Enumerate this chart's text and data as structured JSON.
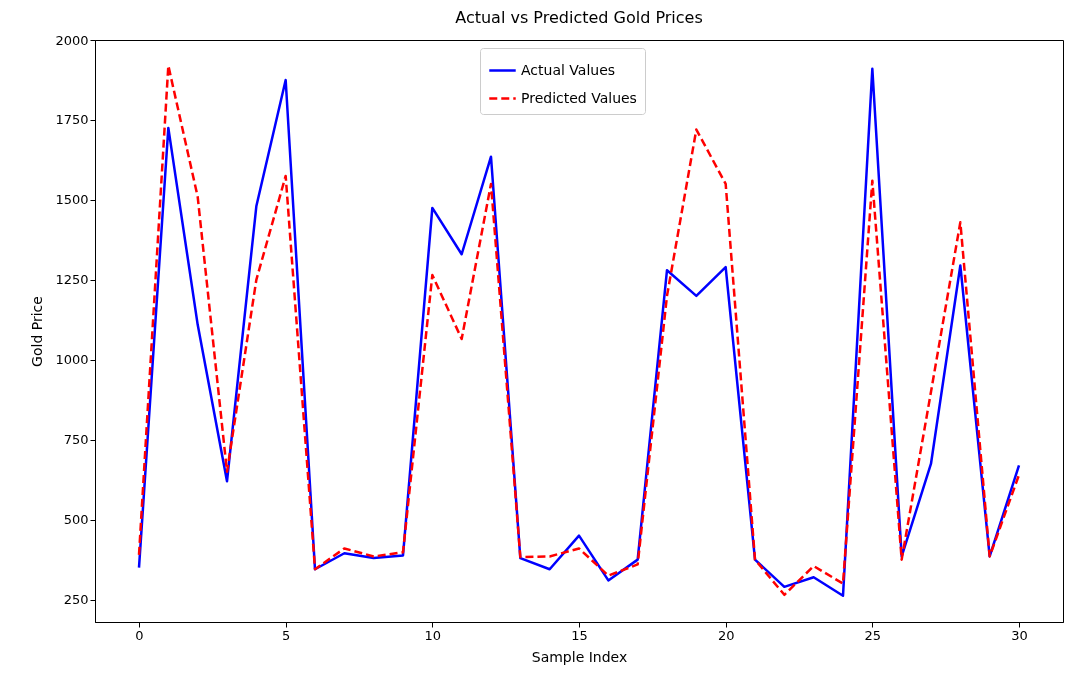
{
  "chart_data": {
    "type": "line",
    "title": "Actual vs Predicted Gold Prices",
    "xlabel": "Sample Index",
    "ylabel": "Gold Price",
    "x": [
      0,
      1,
      2,
      3,
      4,
      5,
      6,
      7,
      8,
      9,
      10,
      11,
      12,
      13,
      14,
      15,
      16,
      17,
      18,
      19,
      20,
      21,
      22,
      23,
      24,
      25,
      26,
      27,
      28,
      29,
      30
    ],
    "series": [
      {
        "name": "Actual Values",
        "color": "#0000ff",
        "line_style": "solid",
        "values": [
          350,
          1725,
          1110,
          620,
          1480,
          1875,
          345,
          395,
          380,
          388,
          1475,
          1330,
          1635,
          380,
          345,
          450,
          310,
          375,
          1280,
          1200,
          1290,
          375,
          290,
          320,
          262,
          1910,
          385,
          675,
          1295,
          385,
          670
        ]
      },
      {
        "name": "Predicted Values",
        "color": "#ff0000",
        "line_style": "dashed",
        "values": [
          390,
          1920,
          1510,
          650,
          1250,
          1575,
          345,
          410,
          385,
          398,
          1265,
          1065,
          1550,
          383,
          385,
          410,
          325,
          360,
          1200,
          1720,
          1550,
          375,
          265,
          355,
          300,
          1560,
          375,
          900,
          1430,
          385,
          640
        ]
      }
    ],
    "xlim": [
      -1.5,
      31.5
    ],
    "ylim": [
      180,
      2000
    ],
    "xticks": [
      0,
      5,
      10,
      15,
      20,
      25,
      30
    ],
    "yticks": [
      250,
      500,
      750,
      1000,
      1250,
      1500,
      1750,
      2000
    ],
    "grid": false,
    "legend": "top",
    "marker": "none"
  }
}
